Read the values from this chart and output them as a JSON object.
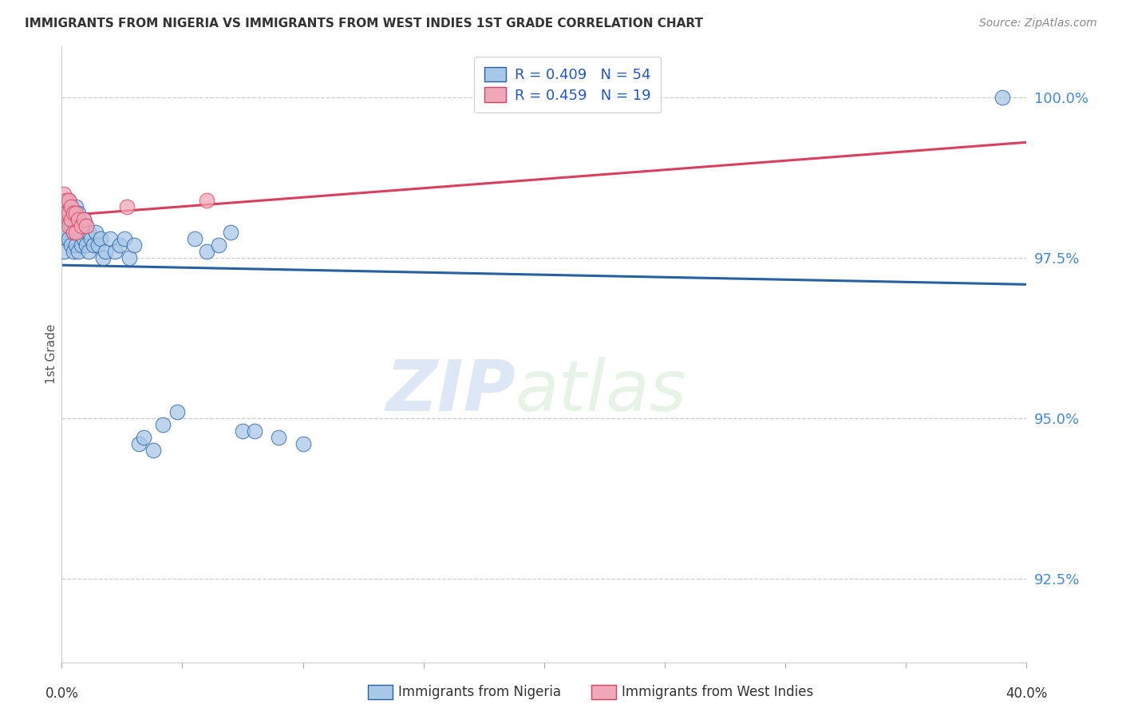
{
  "title": "IMMIGRANTS FROM NIGERIA VS IMMIGRANTS FROM WEST INDIES 1ST GRADE CORRELATION CHART",
  "source": "Source: ZipAtlas.com",
  "ylabel": "1st Grade",
  "ylabel_right_values": [
    1.0,
    0.975,
    0.95,
    0.925
  ],
  "r_nigeria": 0.409,
  "n_nigeria": 54,
  "r_westindies": 0.459,
  "n_westindies": 19,
  "watermark_zip": "ZIP",
  "watermark_atlas": "atlas",
  "color_nigeria": "#a8c8e8",
  "color_westindies": "#f0a8b8",
  "line_nigeria": "#2860a0",
  "line_westindies": "#d84060",
  "nigeria_x": [
    0.001,
    0.001,
    0.002,
    0.002,
    0.003,
    0.003,
    0.003,
    0.004,
    0.004,
    0.004,
    0.005,
    0.005,
    0.005,
    0.006,
    0.006,
    0.006,
    0.007,
    0.007,
    0.007,
    0.008,
    0.008,
    0.009,
    0.009,
    0.01,
    0.01,
    0.011,
    0.011,
    0.012,
    0.013,
    0.014,
    0.015,
    0.016,
    0.017,
    0.018,
    0.02,
    0.022,
    0.024,
    0.026,
    0.028,
    0.03,
    0.032,
    0.034,
    0.038,
    0.042,
    0.048,
    0.055,
    0.06,
    0.065,
    0.07,
    0.075,
    0.08,
    0.09,
    0.1,
    0.39
  ],
  "nigeria_y": [
    0.978,
    0.976,
    0.982,
    0.979,
    0.984,
    0.981,
    0.978,
    0.983,
    0.98,
    0.977,
    0.982,
    0.979,
    0.976,
    0.983,
    0.98,
    0.977,
    0.982,
    0.979,
    0.976,
    0.98,
    0.977,
    0.981,
    0.978,
    0.98,
    0.977,
    0.979,
    0.976,
    0.978,
    0.977,
    0.979,
    0.977,
    0.978,
    0.975,
    0.976,
    0.978,
    0.976,
    0.977,
    0.978,
    0.975,
    0.977,
    0.946,
    0.947,
    0.945,
    0.949,
    0.951,
    0.978,
    0.976,
    0.977,
    0.979,
    0.948,
    0.948,
    0.947,
    0.946,
    1.0
  ],
  "westindies_x": [
    0.001,
    0.001,
    0.002,
    0.002,
    0.003,
    0.003,
    0.003,
    0.004,
    0.004,
    0.005,
    0.005,
    0.006,
    0.006,
    0.007,
    0.008,
    0.009,
    0.01,
    0.027,
    0.06
  ],
  "westindies_y": [
    0.985,
    0.983,
    0.984,
    0.982,
    0.984,
    0.982,
    0.98,
    0.983,
    0.981,
    0.982,
    0.979,
    0.982,
    0.979,
    0.981,
    0.98,
    0.981,
    0.98,
    0.983,
    0.984
  ],
  "xlim": [
    0.0,
    0.4
  ],
  "ylim": [
    0.912,
    1.008
  ],
  "x_ticks": [
    0.0,
    0.05,
    0.1,
    0.15,
    0.2,
    0.25,
    0.3,
    0.35,
    0.4
  ]
}
